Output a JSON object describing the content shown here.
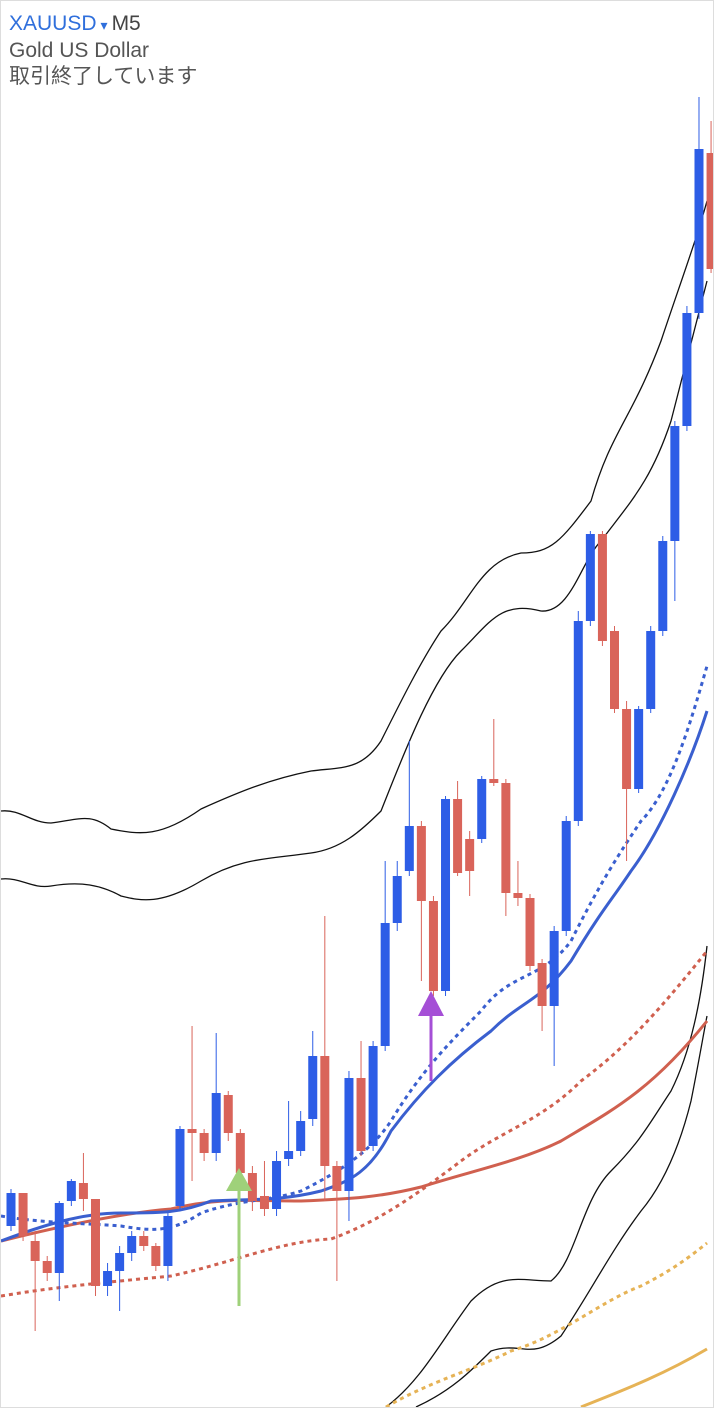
{
  "header": {
    "symbol": "XAUUSD",
    "dropdown": "▾",
    "timeframe": "M5",
    "name": "Gold US Dollar",
    "status": "取引終了しています"
  }
}
